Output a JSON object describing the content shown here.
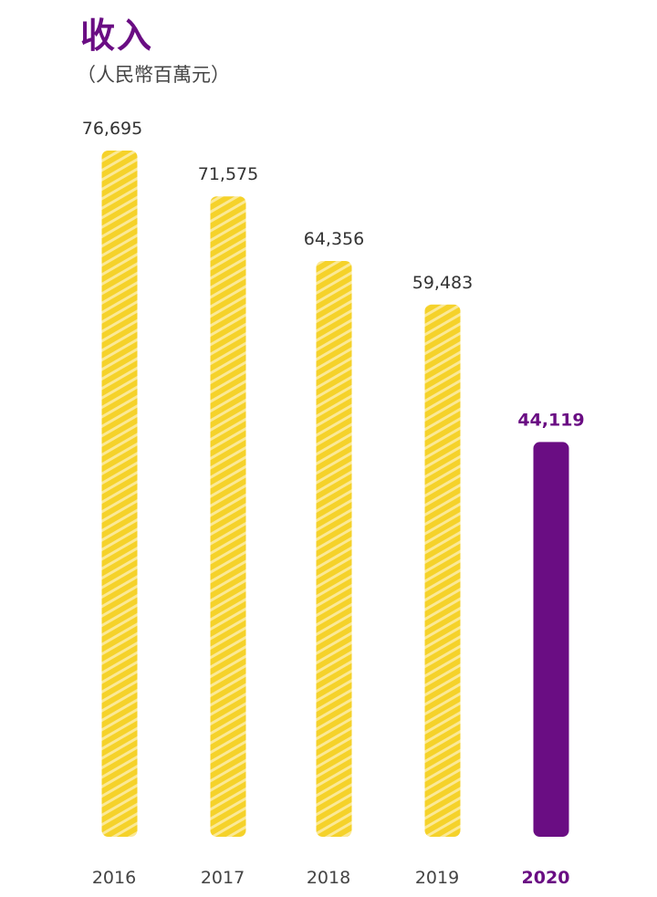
{
  "chart_data": {
    "type": "bar",
    "title": "收入",
    "subtitle": "（人民幣百萬元）",
    "categories": [
      "2016",
      "2017",
      "2018",
      "2019",
      "2020"
    ],
    "values": [
      76695,
      71575,
      64356,
      59483,
      44119
    ],
    "value_labels": [
      "76,695",
      "71,575",
      "64,356",
      "59,483",
      "44,119"
    ],
    "ylim": [
      0,
      76695
    ],
    "grid": false,
    "highlight_category": "2020",
    "colors": {
      "bar": "#f5d22a",
      "bar_stripe": "#fbe996",
      "highlight": "#6a0d83",
      "title": "#6a0d83"
    }
  }
}
